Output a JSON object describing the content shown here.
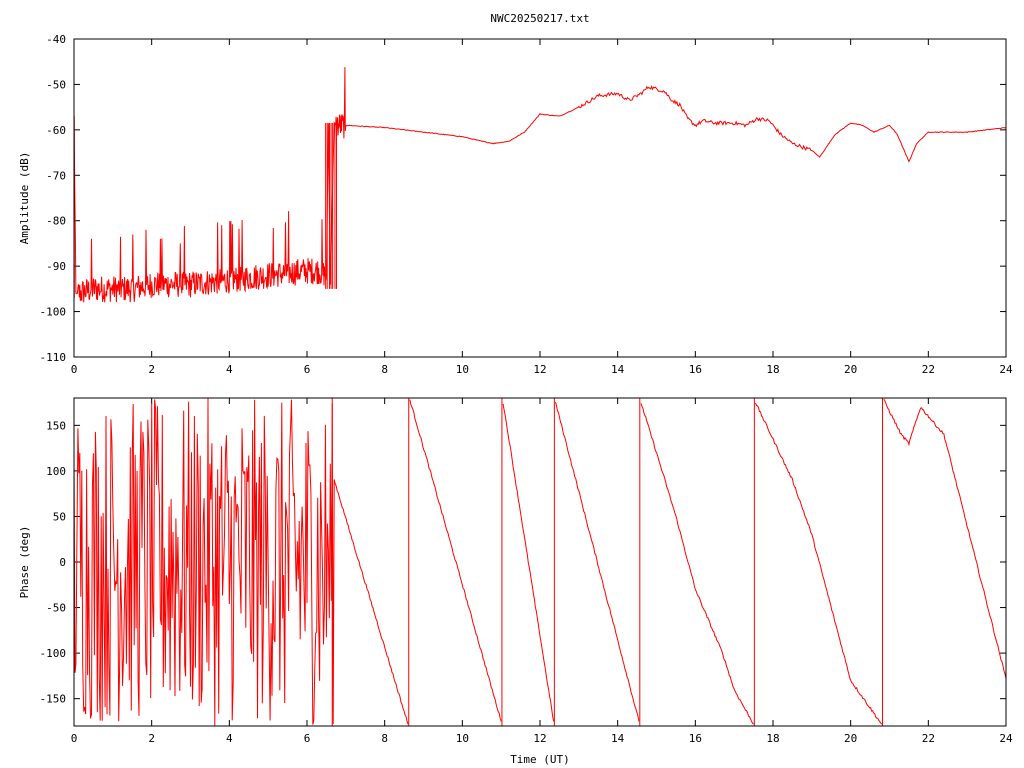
{
  "chart_data": [
    {
      "id": "amplitude",
      "type": "line",
      "title": "NWC20250217.txt",
      "xlabel": "",
      "ylabel": "Amplitude (dB)",
      "xlim": [
        0,
        24
      ],
      "ylim": [
        -110,
        -40
      ],
      "xticks": [
        0,
        2,
        4,
        6,
        8,
        10,
        12,
        14,
        16,
        18,
        20,
        22,
        24
      ],
      "yticks": [
        -110,
        -100,
        -90,
        -80,
        -70,
        -60,
        -50,
        -40
      ],
      "grid": false,
      "color": "#ff0000",
      "x": [
        0,
        0.05,
        0.1,
        0.5,
        1.0,
        1.5,
        2.0,
        2.5,
        3.0,
        3.5,
        4.0,
        4.5,
        5.0,
        5.5,
        6.0,
        6.3,
        6.5,
        6.55,
        6.6,
        6.7,
        6.75,
        7.0,
        8.0,
        9.0,
        10.0,
        10.5,
        10.8,
        11.2,
        11.6,
        12.0,
        12.5,
        13.0,
        13.5,
        14.0,
        14.3,
        14.6,
        14.8,
        15.2,
        15.4,
        15.6,
        15.8,
        16.0,
        16.2,
        16.5,
        17.0,
        17.3,
        17.6,
        17.9,
        18.2,
        18.5,
        19.0,
        19.2,
        19.6,
        20.0,
        20.3,
        20.6,
        21.0,
        21.2,
        21.5,
        21.7,
        22.0,
        22.5,
        23.0,
        23.5,
        24.0
      ],
      "y": [
        -58,
        -96,
        -96,
        -95,
        -95,
        -95,
        -94,
        -94,
        -94,
        -93.5,
        -93,
        -92.5,
        -92,
        -91.5,
        -91,
        -91,
        -92,
        -58.5,
        -94,
        -58.5,
        -59,
        -59,
        -59.5,
        -60.5,
        -61.5,
        -62.5,
        -63,
        -62.5,
        -60.5,
        -56.5,
        -57,
        -55,
        -52.5,
        -52,
        -53.5,
        -52,
        -50.5,
        -51.5,
        -53.5,
        -54.5,
        -57.5,
        -59,
        -58,
        -58.5,
        -58.5,
        -59,
        -57.5,
        -58,
        -61,
        -63,
        -64.5,
        -66,
        -61,
        -58.5,
        -59,
        -60.5,
        -59,
        -61,
        -67,
        -63,
        -60.5,
        -60.5,
        -60.5,
        -60,
        -59.5
      ]
    },
    {
      "id": "phase",
      "type": "line",
      "title": "",
      "xlabel": "Time (UT)",
      "ylabel": "Phase (deg)",
      "xlim": [
        0,
        24
      ],
      "ylim": [
        -180,
        180
      ],
      "xticks": [
        0,
        2,
        4,
        6,
        8,
        10,
        12,
        14,
        16,
        18,
        20,
        22,
        24
      ],
      "yticks": [
        -150,
        -100,
        -50,
        0,
        50,
        100,
        150
      ],
      "grid": false,
      "color": "#ff0000",
      "segments": [
        {
          "x": [
            0,
            0.3,
            0.6,
            1.0,
            1.4,
            1.8,
            2.2,
            2.6,
            3.0,
            3.4,
            3.8,
            4.2,
            4.6,
            5.0,
            5.4,
            5.8,
            6.0,
            6.2,
            6.4,
            6.5,
            6.7
          ],
          "y": [
            150,
            -170,
            100,
            -120,
            160,
            -80,
            170,
            -150,
            120,
            -170,
            90,
            175,
            -160,
            130,
            -170,
            60,
            -60,
            -40,
            120,
            150,
            90
          ]
        },
        {
          "x": [
            6.7,
            8.6
          ],
          "y": [
            90,
            -178
          ]
        },
        {
          "x": [
            8.65,
            11.0
          ],
          "y": [
            178,
            -175
          ]
        },
        {
          "x": [
            11.05,
            12.35
          ],
          "y": [
            175,
            -175
          ]
        },
        {
          "x": [
            12.4,
            14.55
          ],
          "y": [
            175,
            -175
          ]
        },
        {
          "x": [
            14.6,
            15.0,
            15.5,
            16.0,
            16.3,
            16.7,
            17.0,
            17.5
          ],
          "y": [
            175,
            120,
            50,
            -30,
            -60,
            -100,
            -140,
            -178
          ]
        },
        {
          "x": [
            17.55,
            18.5,
            19.0,
            20.0,
            20.8
          ],
          "y": [
            175,
            90,
            30,
            -130,
            -178
          ]
        },
        {
          "x": [
            20.85,
            21.3,
            21.5,
            21.8,
            22.4,
            24.0
          ],
          "y": [
            178,
            140,
            130,
            170,
            140,
            -128
          ]
        }
      ],
      "verticals": [
        6.65,
        8.62,
        11.02,
        12.37,
        14.57,
        17.52,
        20.82
      ]
    }
  ]
}
